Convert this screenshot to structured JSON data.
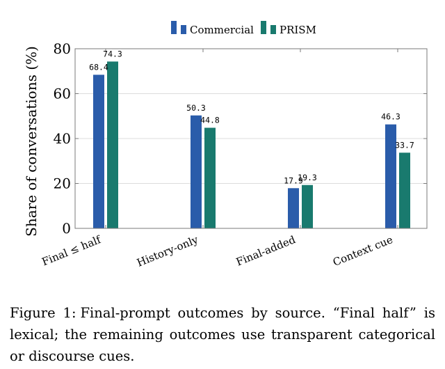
{
  "chart_data": {
    "type": "bar",
    "ylabel": "Share of conversations (%)",
    "xlabel": "",
    "ylim": [
      0,
      80
    ],
    "yticks": [
      0,
      20,
      40,
      60,
      80
    ],
    "grid": true,
    "legend_position": "top",
    "categories": [
      "Final ≤ half",
      "History-only",
      "Final-added",
      "Context cue"
    ],
    "series": [
      {
        "name": "Commercial",
        "values": [
          68.4,
          50.3,
          17.9,
          46.3
        ],
        "labels": [
          "68.4",
          "50.3",
          "17.9",
          "46.3"
        ],
        "color": "#2a5caa"
      },
      {
        "name": "PRISM",
        "values": [
          74.3,
          44.8,
          19.3,
          33.7
        ],
        "labels": [
          "74.3",
          "44.8",
          "19.3",
          "33.7"
        ],
        "color": "#197a6e"
      }
    ]
  },
  "caption": {
    "label": "Figure 1:",
    "text": "Final-prompt outcomes by source. “Final half” is lexical; the remaining outcomes use transparent categorical or discourse cues."
  }
}
